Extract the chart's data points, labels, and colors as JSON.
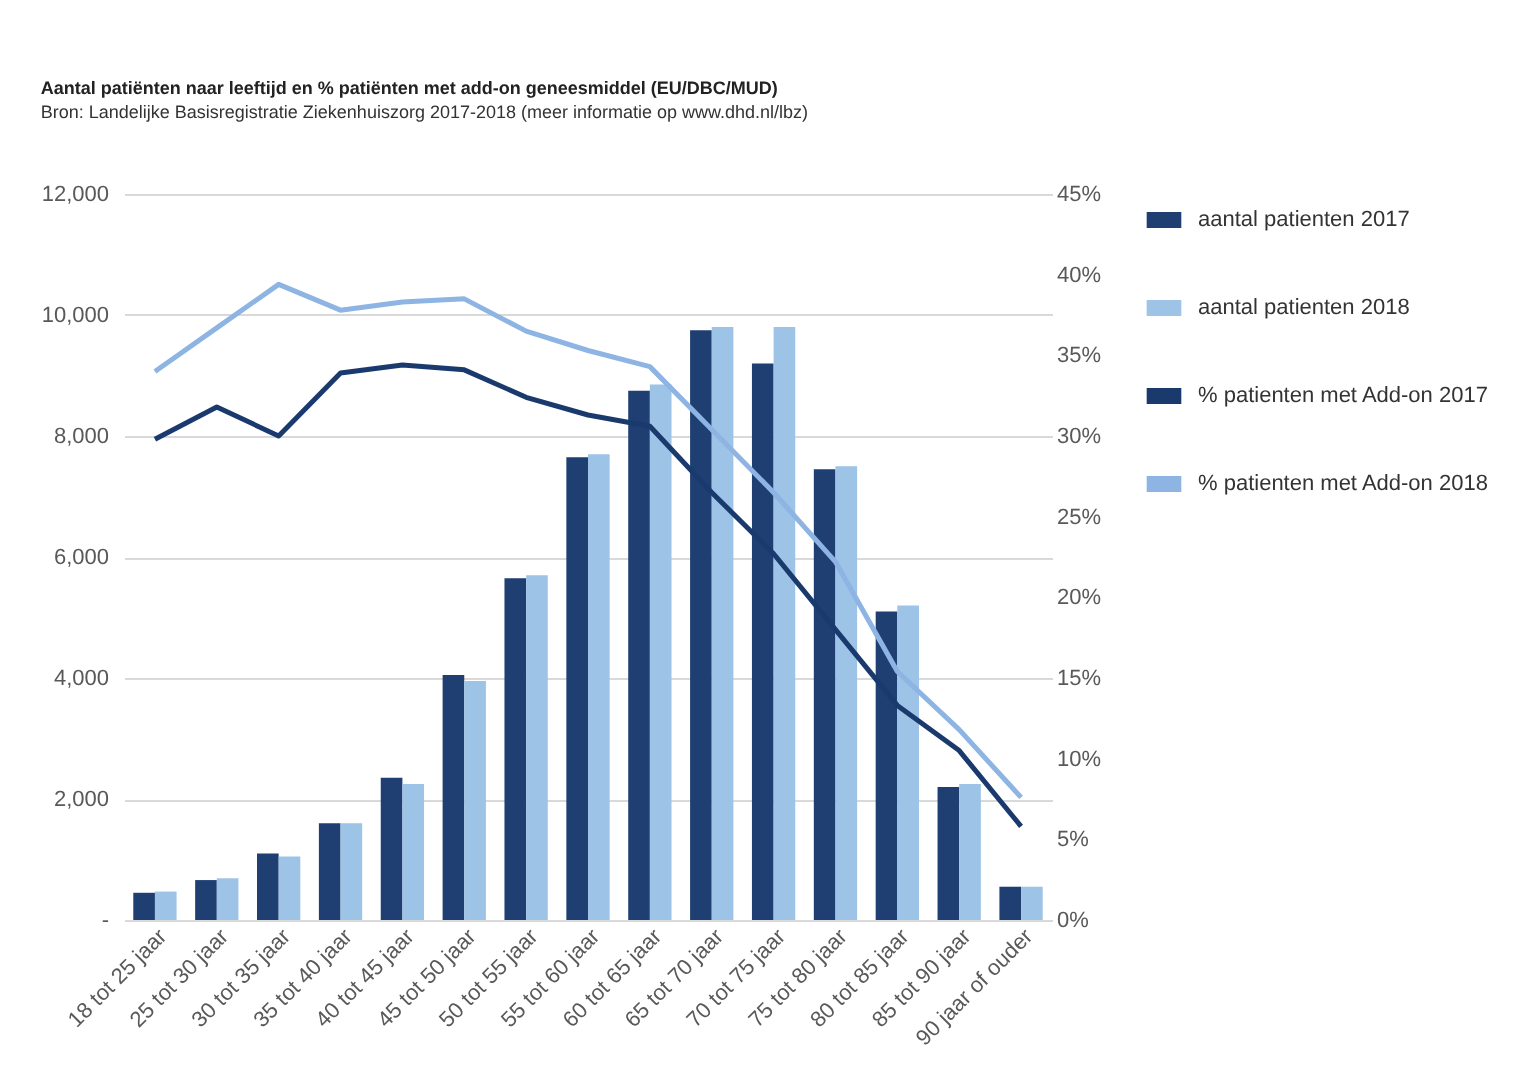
{
  "chart_data": {
    "type": "bar",
    "title": "Aantal patiënten naar leeftijd en % patiënten met add-on geneesmiddel (EU/DBC/MUD)",
    "subtitle": "Bron: Landelijke Basisregistratie Ziekenhuiszorg 2017-2018 (meer informatie op www.dhd.nl/lbz)",
    "categories": [
      "18 tot 25 jaar",
      "25 tot 30 jaar",
      "30 tot 35 jaar",
      "35 tot 40 jaar",
      "40 tot 45 jaar",
      "45 tot 50 jaar",
      "50 tot 55 jaar",
      "55 tot 60 jaar",
      "60 tot 65 jaar",
      "65 tot 70 jaar",
      "70 tot 75 jaar",
      "75 tot 80 jaar",
      "80 tot 85 jaar",
      "85 tot 90 jaar",
      "90 jaar of ouder"
    ],
    "series": [
      {
        "name": "aantal patienten 2017",
        "color": "#1f3f73",
        "values": [
          450,
          660,
          1100,
          1600,
          2350,
          4050,
          5650,
          7650,
          8750,
          9750,
          9200,
          7450,
          5100,
          2200,
          550
        ]
      },
      {
        "name": "aantal patienten 2018",
        "color": "#9dc3e6",
        "values": [
          470,
          690,
          1050,
          1600,
          2250,
          3950,
          5700,
          7700,
          8850,
          9800,
          9800,
          7500,
          5200,
          2250,
          550
        ]
      },
      {
        "name": "% patienten met Add-on 2017",
        "type": "line",
        "axis": "y2",
        "color": "#1a3a6e",
        "values": [
          29.8,
          31.8,
          30.0,
          33.9,
          34.4,
          34.1,
          32.4,
          31.3,
          30.6,
          26.5,
          22.7,
          18.0,
          13.3,
          10.5,
          5.8
        ]
      },
      {
        "name": "% patienten met Add-on 2018",
        "type": "line",
        "axis": "y2",
        "color": "#8db4e2",
        "values": [
          34.0,
          36.7,
          39.4,
          37.8,
          38.3,
          38.5,
          36.5,
          35.3,
          34.3,
          30.4,
          26.5,
          22.2,
          15.4,
          11.8,
          7.6
        ]
      }
    ],
    "ylim": [
      0,
      12000
    ],
    "yticks": [
      {
        "value": 0,
        "label": "-"
      },
      {
        "value": 2000,
        "label": "2,000"
      },
      {
        "value": 4000,
        "label": "4,000"
      },
      {
        "value": 6000,
        "label": "6,000"
      },
      {
        "value": 8000,
        "label": "8,000"
      },
      {
        "value": 10000,
        "label": "10,000"
      },
      {
        "value": 12000,
        "label": "12,000"
      }
    ],
    "y2lim": [
      0,
      45
    ],
    "y2ticks": [
      {
        "value": 0,
        "label": "0%"
      },
      {
        "value": 5,
        "label": "5%"
      },
      {
        "value": 10,
        "label": "10%"
      },
      {
        "value": 15,
        "label": "15%"
      },
      {
        "value": 20,
        "label": "20%"
      },
      {
        "value": 25,
        "label": "25%"
      },
      {
        "value": 30,
        "label": "30%"
      },
      {
        "value": 35,
        "label": "35%"
      },
      {
        "value": 40,
        "label": "40%"
      },
      {
        "value": 45,
        "label": "45%"
      }
    ],
    "grid": "y",
    "legend": "right"
  }
}
